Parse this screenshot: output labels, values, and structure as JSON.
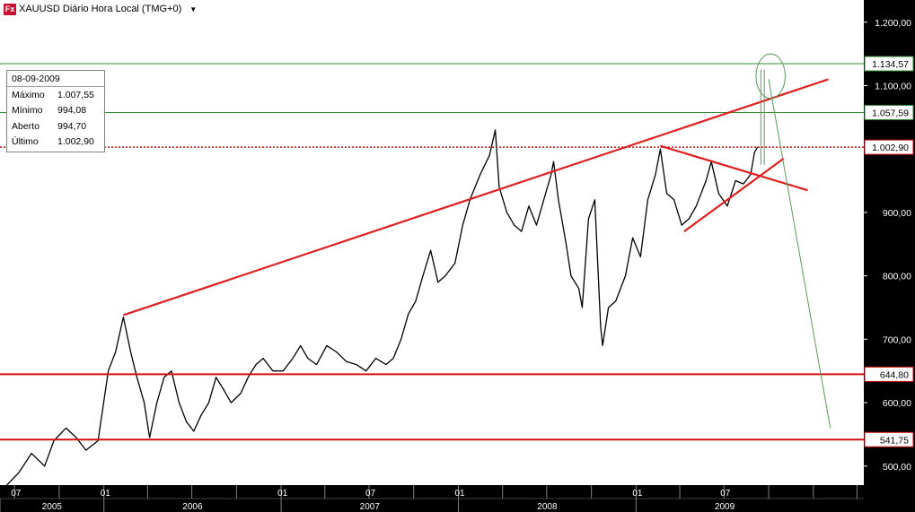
{
  "header": {
    "icon": "fx-icon",
    "title": "XAUUSD Diário Hora Local (TMG+0)"
  },
  "info_box": {
    "date": "08-09-2009",
    "rows": [
      {
        "label": "Máximo",
        "value": "1.007,55"
      },
      {
        "label": "Mínimo",
        "value": "994,08"
      },
      {
        "label": "Aberto",
        "value": "994,70"
      },
      {
        "label": "Último",
        "value": "1.002,90"
      }
    ]
  },
  "chart_data": {
    "type": "line",
    "y_axis": {
      "min": 470,
      "max": 1235,
      "ticks": [
        {
          "value": 1200,
          "label": "1.200,00"
        },
        {
          "value": 1100,
          "label": "1.100,00"
        },
        {
          "value": 900,
          "label": "900,00"
        },
        {
          "value": 800,
          "label": "800,00"
        },
        {
          "value": 700,
          "label": "700,00"
        },
        {
          "value": 600,
          "label": "600,00"
        },
        {
          "value": 500,
          "label": "500,00"
        }
      ]
    },
    "x_axis": {
      "month_ticks": [
        {
          "date": "2005-07",
          "label": "07"
        },
        {
          "date": "2006-01",
          "label": "01"
        },
        {
          "date": "2007-01",
          "label": "01"
        },
        {
          "date": "2007-07",
          "label": "07"
        },
        {
          "date": "2008-01",
          "label": "01"
        },
        {
          "date": "2009-01",
          "label": "01"
        },
        {
          "date": "2009-07",
          "label": "07"
        }
      ],
      "year_labels": [
        {
          "year": "2005",
          "label": "2005"
        },
        {
          "year": "2006",
          "label": "2006"
        },
        {
          "year": "2007",
          "label": "2007"
        },
        {
          "year": "2008",
          "label": "2008"
        },
        {
          "year": "2009",
          "label": "2009"
        }
      ]
    },
    "series": [
      {
        "color": "#000000",
        "points": [
          [
            "2005-06-15",
            470
          ],
          [
            "2005-07-10",
            490
          ],
          [
            "2005-08-05",
            520
          ],
          [
            "2005-09-01",
            500
          ],
          [
            "2005-09-20",
            540
          ],
          [
            "2005-10-15",
            560
          ],
          [
            "2005-11-05",
            545
          ],
          [
            "2005-11-25",
            525
          ],
          [
            "2005-12-20",
            540
          ],
          [
            "2006-01-10",
            650
          ],
          [
            "2006-01-25",
            680
          ],
          [
            "2006-02-10",
            735
          ],
          [
            "2006-02-25",
            680
          ],
          [
            "2006-03-10",
            640
          ],
          [
            "2006-03-25",
            600
          ],
          [
            "2006-04-05",
            545
          ],
          [
            "2006-04-20",
            600
          ],
          [
            "2006-05-05",
            640
          ],
          [
            "2006-05-20",
            650
          ],
          [
            "2006-06-05",
            600
          ],
          [
            "2006-06-20",
            570
          ],
          [
            "2006-07-05",
            555
          ],
          [
            "2006-07-20",
            580
          ],
          [
            "2006-08-05",
            600
          ],
          [
            "2006-08-20",
            640
          ],
          [
            "2006-09-05",
            620
          ],
          [
            "2006-09-20",
            600
          ],
          [
            "2006-10-10",
            615
          ],
          [
            "2006-10-25",
            640
          ],
          [
            "2006-11-10",
            660
          ],
          [
            "2006-11-25",
            670
          ],
          [
            "2006-12-15",
            650
          ],
          [
            "2007-01-05",
            650
          ],
          [
            "2007-01-25",
            670
          ],
          [
            "2007-02-10",
            690
          ],
          [
            "2007-02-25",
            670
          ],
          [
            "2007-03-15",
            660
          ],
          [
            "2007-04-05",
            690
          ],
          [
            "2007-04-25",
            680
          ],
          [
            "2007-05-15",
            665
          ],
          [
            "2007-06-05",
            660
          ],
          [
            "2007-06-25",
            650
          ],
          [
            "2007-07-15",
            670
          ],
          [
            "2007-08-05",
            660
          ],
          [
            "2007-08-20",
            670
          ],
          [
            "2007-09-05",
            700
          ],
          [
            "2007-09-20",
            740
          ],
          [
            "2007-10-05",
            760
          ],
          [
            "2007-10-20",
            800
          ],
          [
            "2007-11-05",
            840
          ],
          [
            "2007-11-20",
            790
          ],
          [
            "2007-12-05",
            800
          ],
          [
            "2007-12-25",
            820
          ],
          [
            "2008-01-10",
            880
          ],
          [
            "2008-01-25",
            920
          ],
          [
            "2008-02-15",
            960
          ],
          [
            "2008-03-05",
            990
          ],
          [
            "2008-03-17",
            1030
          ],
          [
            "2008-03-25",
            940
          ],
          [
            "2008-04-10",
            900
          ],
          [
            "2008-04-25",
            880
          ],
          [
            "2008-05-10",
            870
          ],
          [
            "2008-05-25",
            910
          ],
          [
            "2008-06-10",
            880
          ],
          [
            "2008-06-25",
            920
          ],
          [
            "2008-07-10",
            960
          ],
          [
            "2008-07-15",
            980
          ],
          [
            "2008-07-25",
            920
          ],
          [
            "2008-08-10",
            850
          ],
          [
            "2008-08-20",
            800
          ],
          [
            "2008-09-05",
            780
          ],
          [
            "2008-09-12",
            750
          ],
          [
            "2008-09-25",
            890
          ],
          [
            "2008-10-08",
            920
          ],
          [
            "2008-10-20",
            720
          ],
          [
            "2008-10-24",
            690
          ],
          [
            "2008-11-05",
            750
          ],
          [
            "2008-11-20",
            760
          ],
          [
            "2008-12-10",
            800
          ],
          [
            "2008-12-25",
            860
          ],
          [
            "2009-01-10",
            830
          ],
          [
            "2009-01-25",
            920
          ],
          [
            "2009-02-10",
            960
          ],
          [
            "2009-02-20",
            1000
          ],
          [
            "2009-03-05",
            930
          ],
          [
            "2009-03-20",
            920
          ],
          [
            "2009-04-05",
            880
          ],
          [
            "2009-04-20",
            890
          ],
          [
            "2009-05-05",
            910
          ],
          [
            "2009-05-25",
            950
          ],
          [
            "2009-06-05",
            980
          ],
          [
            "2009-06-20",
            930
          ],
          [
            "2009-07-08",
            910
          ],
          [
            "2009-07-25",
            950
          ],
          [
            "2009-08-10",
            945
          ],
          [
            "2009-08-25",
            960
          ],
          [
            "2009-09-02",
            995
          ],
          [
            "2009-09-08",
            1003
          ]
        ]
      }
    ],
    "horizontal_levels": [
      {
        "value": 1134.57,
        "label": "1.134,57",
        "color": "#2e8b2e",
        "style": "solid"
      },
      {
        "value": 1057.59,
        "label": "1.057,59",
        "color": "#2e8b2e",
        "style": "solid"
      },
      {
        "value": 1002.9,
        "label": "1.002,90",
        "color": "#d11010",
        "style": "dotted"
      },
      {
        "value": 644.8,
        "label": "644,80",
        "color": "#d11010",
        "style": "solid"
      },
      {
        "value": 541.75,
        "label": "541,75",
        "color": "#d11010",
        "style": "solid"
      }
    ],
    "trendlines": [
      {
        "color": "#e02020",
        "from": [
          "2006-02-10",
          738
        ],
        "to": [
          "2010-02-01",
          1110
        ]
      },
      {
        "color": "#e02020",
        "from": [
          "2009-02-20",
          1005
        ],
        "to": [
          "2009-12-20",
          935
        ]
      },
      {
        "color": "#e02020",
        "from": [
          "2009-04-10",
          870
        ],
        "to": [
          "2009-11-01",
          985
        ]
      },
      {
        "color": "#5a9a5a",
        "from": [
          "2009-10-01",
          1110
        ],
        "to": [
          "2010-02-05",
          560
        ]
      }
    ],
    "annotations": [
      {
        "type": "ellipse",
        "color": "#5a9a5a",
        "center": [
          "2009-10-05",
          1115
        ],
        "rx_days": 30,
        "ry_value": 35
      },
      {
        "type": "thin-line",
        "color": "#5a9a5a",
        "from": [
          "2009-09-15",
          1125
        ],
        "to": [
          "2009-09-15",
          975
        ]
      },
      {
        "type": "thin-line",
        "color": "#5a9a5a",
        "from": [
          "2009-09-22",
          1125
        ],
        "to": [
          "2009-09-22",
          975
        ]
      }
    ],
    "grid": false,
    "legend": "none"
  }
}
